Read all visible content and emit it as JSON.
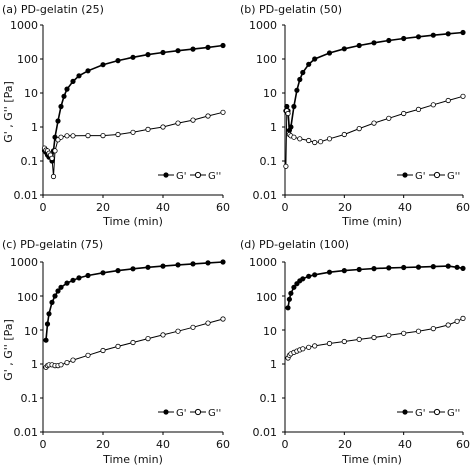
{
  "figure": {
    "ylabel_shared": "G' , G'' [Pa]",
    "xlabel_shared": "Time (min)"
  },
  "chart_data": [
    {
      "type": "scatter",
      "title": "(a) PD-gelatin (25)",
      "xlabel": "Time (min)",
      "ylabel": "G' , G'' [Pa]",
      "xlim": [
        0,
        60
      ],
      "ylim": [
        0.01,
        1000
      ],
      "yscale": "log",
      "xticks": [
        0,
        20,
        40,
        60
      ],
      "yticks": [
        "0.01",
        "0.1",
        "1",
        "10",
        "100",
        "1000"
      ],
      "legend_position": "bottom-right",
      "series": [
        {
          "name": "G'",
          "marker": "filled-circle",
          "x": [
            0.5,
            1,
            1.5,
            2,
            2.5,
            3,
            3.5,
            4,
            5,
            6,
            7,
            8,
            10,
            12,
            15,
            20,
            25,
            30,
            35,
            40,
            45,
            50,
            55,
            60
          ],
          "y": [
            0.2,
            0.18,
            0.15,
            0.13,
            0.14,
            0.1,
            0.2,
            0.5,
            1.5,
            4,
            8,
            13,
            22,
            32,
            45,
            68,
            90,
            112,
            135,
            155,
            175,
            195,
            220,
            250
          ]
        },
        {
          "name": "G''",
          "marker": "open-circle",
          "x": [
            0.5,
            1,
            1.5,
            2,
            2.5,
            3,
            3.5,
            4,
            5,
            6,
            8,
            10,
            15,
            20,
            25,
            30,
            35,
            40,
            45,
            50,
            55,
            60
          ],
          "y": [
            0.24,
            0.21,
            0.2,
            0.17,
            0.15,
            0.12,
            0.035,
            0.2,
            0.42,
            0.5,
            0.55,
            0.55,
            0.56,
            0.56,
            0.6,
            0.7,
            0.85,
            1.0,
            1.3,
            1.6,
            2.1,
            2.7
          ]
        }
      ]
    },
    {
      "type": "scatter",
      "title": "(b) PD-gelatin (50)",
      "xlabel": "Time (min)",
      "ylabel": "",
      "xlim": [
        0,
        60
      ],
      "ylim": [
        0.01,
        1000
      ],
      "yscale": "log",
      "xticks": [
        0,
        20,
        40,
        60
      ],
      "yticks": [
        "0.01",
        "0.1",
        "1",
        "10",
        "100",
        "1000"
      ],
      "legend_position": "middle-right",
      "series": [
        {
          "name": "G'",
          "marker": "filled-circle",
          "x": [
            0.3,
            0.6,
            1,
            1.5,
            2,
            3,
            4,
            5,
            6,
            8,
            10,
            15,
            20,
            25,
            30,
            35,
            40,
            45,
            50,
            55,
            60
          ],
          "y": [
            3,
            4,
            3,
            0.8,
            1,
            4,
            12,
            25,
            40,
            70,
            100,
            150,
            200,
            250,
            300,
            350,
            400,
            450,
            500,
            550,
            600
          ]
        },
        {
          "name": "G''",
          "marker": "open-circle",
          "x": [
            0.3,
            0.6,
            1,
            1.5,
            2,
            3,
            5,
            8,
            10,
            12,
            15,
            20,
            25,
            30,
            35,
            40,
            45,
            50,
            55,
            60
          ],
          "y": [
            0.07,
            3,
            2.5,
            0.6,
            0.55,
            0.5,
            0.45,
            0.4,
            0.35,
            0.37,
            0.45,
            0.6,
            0.9,
            1.3,
            1.8,
            2.5,
            3.3,
            4.5,
            6,
            8
          ]
        }
      ]
    },
    {
      "type": "scatter",
      "title": "(c) PD-gelatin (75)",
      "xlabel": "Time (min)",
      "ylabel": "G' , G'' [Pa]",
      "xlim": [
        0,
        60
      ],
      "ylim": [
        0.01,
        1000
      ],
      "yscale": "log",
      "xticks": [
        0,
        20,
        40,
        60
      ],
      "yticks": [
        "0.01",
        "0.1",
        "1",
        "10",
        "100",
        "1000"
      ],
      "legend_position": "bottom-right",
      "series": [
        {
          "name": "G'",
          "marker": "filled-circle",
          "x": [
            1,
            1.5,
            2,
            3,
            4,
            5,
            6,
            8,
            10,
            12,
            15,
            20,
            25,
            30,
            35,
            40,
            45,
            50,
            55,
            60
          ],
          "y": [
            5,
            15,
            30,
            65,
            100,
            140,
            180,
            240,
            290,
            340,
            400,
            480,
            560,
            630,
            700,
            760,
            820,
            880,
            940,
            1000
          ]
        },
        {
          "name": "G''",
          "marker": "open-circle",
          "x": [
            1,
            1.5,
            2,
            3,
            4,
            5,
            6,
            8,
            10,
            15,
            20,
            25,
            30,
            35,
            40,
            45,
            50,
            55,
            60
          ],
          "y": [
            0.8,
            0.9,
            0.95,
            0.95,
            0.9,
            0.9,
            0.95,
            1.1,
            1.3,
            1.8,
            2.5,
            3.3,
            4.3,
            5.6,
            7.2,
            9.2,
            12,
            16,
            21
          ]
        }
      ]
    },
    {
      "type": "scatter",
      "title": "(d) PD-gelatin (100)",
      "xlabel": "Time (min)",
      "ylabel": "",
      "xlim": [
        0,
        60
      ],
      "ylim": [
        0.01,
        1000
      ],
      "yscale": "log",
      "xticks": [
        0,
        20,
        40,
        60
      ],
      "yticks": [
        "0.01",
        "0.1",
        "1",
        "10",
        "100",
        "1000"
      ],
      "legend_position": "bottom-right",
      "series": [
        {
          "name": "G'",
          "marker": "filled-circle",
          "x": [
            1,
            1.5,
            2,
            3,
            4,
            5,
            6,
            8,
            10,
            15,
            20,
            25,
            30,
            35,
            40,
            45,
            50,
            55,
            58,
            60
          ],
          "y": [
            45,
            80,
            120,
            180,
            230,
            280,
            320,
            380,
            420,
            500,
            560,
            600,
            640,
            670,
            690,
            710,
            730,
            760,
            700,
            650
          ]
        },
        {
          "name": "G''",
          "marker": "open-circle",
          "x": [
            1,
            1.5,
            2,
            3,
            4,
            5,
            6,
            8,
            10,
            15,
            20,
            25,
            30,
            35,
            40,
            45,
            50,
            55,
            58,
            60
          ],
          "y": [
            1.5,
            1.8,
            2.0,
            2.2,
            2.4,
            2.6,
            2.8,
            3.1,
            3.4,
            4.0,
            4.6,
            5.3,
            6.0,
            7.0,
            8.0,
            9.2,
            11,
            14,
            18,
            22
          ]
        }
      ]
    }
  ]
}
